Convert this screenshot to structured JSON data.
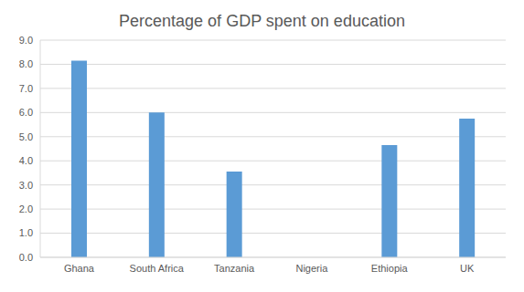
{
  "chart_data": {
    "type": "bar",
    "title": "Percentage of GDP spent on education",
    "categories": [
      "Ghana",
      "South Africa",
      "Tanzania",
      "Nigeria",
      "Ethiopia",
      "UK"
    ],
    "values": [
      8.15,
      6.0,
      3.55,
      null,
      4.65,
      5.75
    ],
    "color": "#5b9bd5",
    "ylim": [
      0,
      9
    ],
    "yticks": [
      {
        "value": 0,
        "label": "0.0"
      },
      {
        "value": 1,
        "label": "1.0"
      },
      {
        "value": 2,
        "label": "2.0"
      },
      {
        "value": 3,
        "label": "3.0"
      },
      {
        "value": 4,
        "label": "4.0"
      },
      {
        "value": 5,
        "label": "5.0"
      },
      {
        "value": 6,
        "label": "6.0"
      },
      {
        "value": 7,
        "label": "7.0"
      },
      {
        "value": 8,
        "label": "8.0"
      },
      {
        "value": 9,
        "label": "9.0"
      }
    ],
    "grid": true
  }
}
